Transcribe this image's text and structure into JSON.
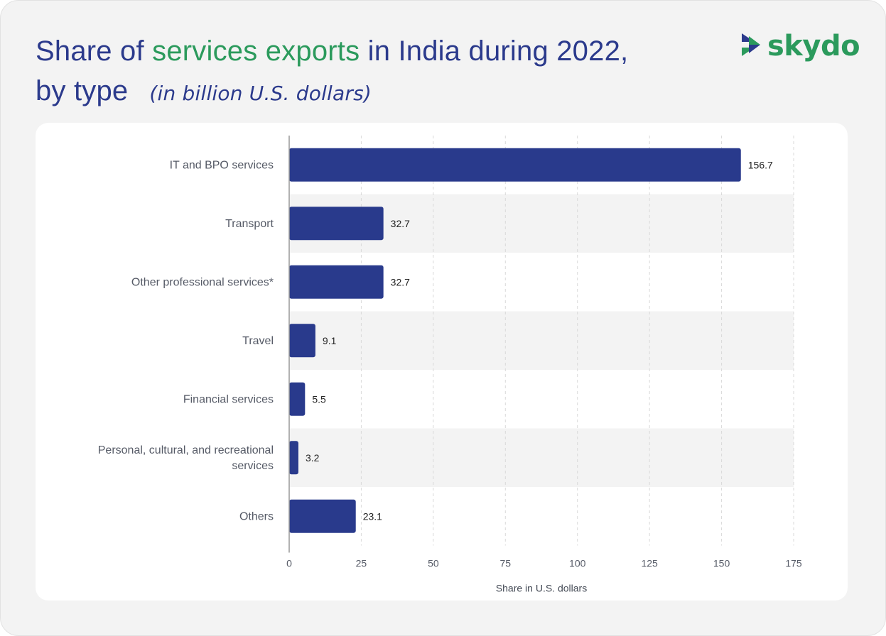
{
  "header": {
    "title_part1": "Share of ",
    "title_accent": "services exports",
    "title_part2": " in India during 2022,",
    "title_line2": "by type",
    "subtitle": "(in billion U.S. dollars)"
  },
  "logo": {
    "text": "skydo",
    "icon": "skydo-chevron-icon"
  },
  "colors": {
    "bar": "#293a8c",
    "title": "#2b3a8c",
    "accent": "#2b9a5c",
    "band": "#f3f3f3",
    "grid": "#d9d9d9"
  },
  "chart_data": {
    "type": "bar",
    "orientation": "horizontal",
    "categories": [
      [
        "IT and BPO services"
      ],
      [
        "Transport"
      ],
      [
        "Other professional services*"
      ],
      [
        "Travel"
      ],
      [
        "Financial services"
      ],
      [
        "Personal, cultural, and recreational",
        "services"
      ],
      [
        "Others"
      ]
    ],
    "values": [
      156.7,
      32.7,
      32.7,
      9.1,
      5.5,
      3.2,
      23.1
    ],
    "value_labels": [
      "156.7",
      "32.7",
      "32.7",
      "9.1",
      "5.5",
      "3.2",
      "23.1"
    ],
    "xlabel": "Share in U.S. dollars",
    "xlim": [
      0,
      175
    ],
    "xticks": [
      0,
      25,
      50,
      75,
      100,
      125,
      150,
      175
    ],
    "grid": true
  }
}
